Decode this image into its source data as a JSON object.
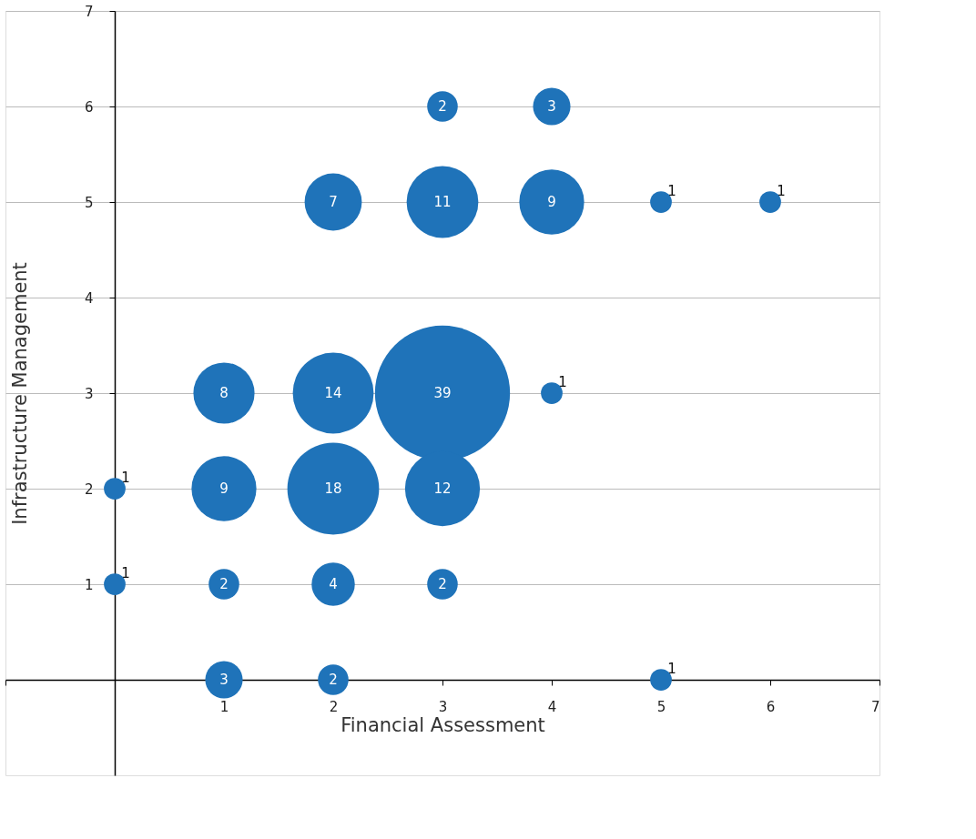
{
  "chart_data": {
    "type": "bubble",
    "xlabel": "Financial Assessment",
    "ylabel": "Infrastructure Management",
    "x": [
      3,
      4,
      2,
      3,
      4,
      5,
      6,
      1,
      2,
      3,
      4,
      0,
      1,
      2,
      3,
      0,
      1,
      2,
      3,
      1,
      2,
      5
    ],
    "series": [
      {
        "color": "#1f73b9",
        "values": [
          6,
          6,
          5,
          5,
          5,
          5,
          5,
          3,
          3,
          3,
          3,
          2,
          2,
          2,
          2,
          1,
          1,
          1,
          1,
          0,
          0,
          0
        ],
        "sizes": [
          2,
          3,
          7,
          11,
          9,
          1,
          1,
          8,
          14,
          39,
          1,
          1,
          9,
          18,
          12,
          1,
          2,
          4,
          2,
          3,
          2,
          1
        ],
        "value_labels": [
          "2",
          "3",
          "7",
          "11",
          "9",
          "1",
          "1",
          "8",
          "14",
          "39",
          "1",
          "1",
          "9",
          "18",
          "12",
          "1",
          "2",
          "4",
          "2",
          "3",
          "2",
          "1"
        ]
      }
    ],
    "xlim": [
      -1,
      7
    ],
    "ylim": [
      -1,
      7
    ],
    "xticks": [
      {
        "value": -1,
        "label": null
      },
      1,
      2,
      3,
      4,
      5,
      6,
      7
    ],
    "yticks": [
      1,
      2,
      3,
      4,
      5,
      6,
      7
    ],
    "grid": "y"
  }
}
